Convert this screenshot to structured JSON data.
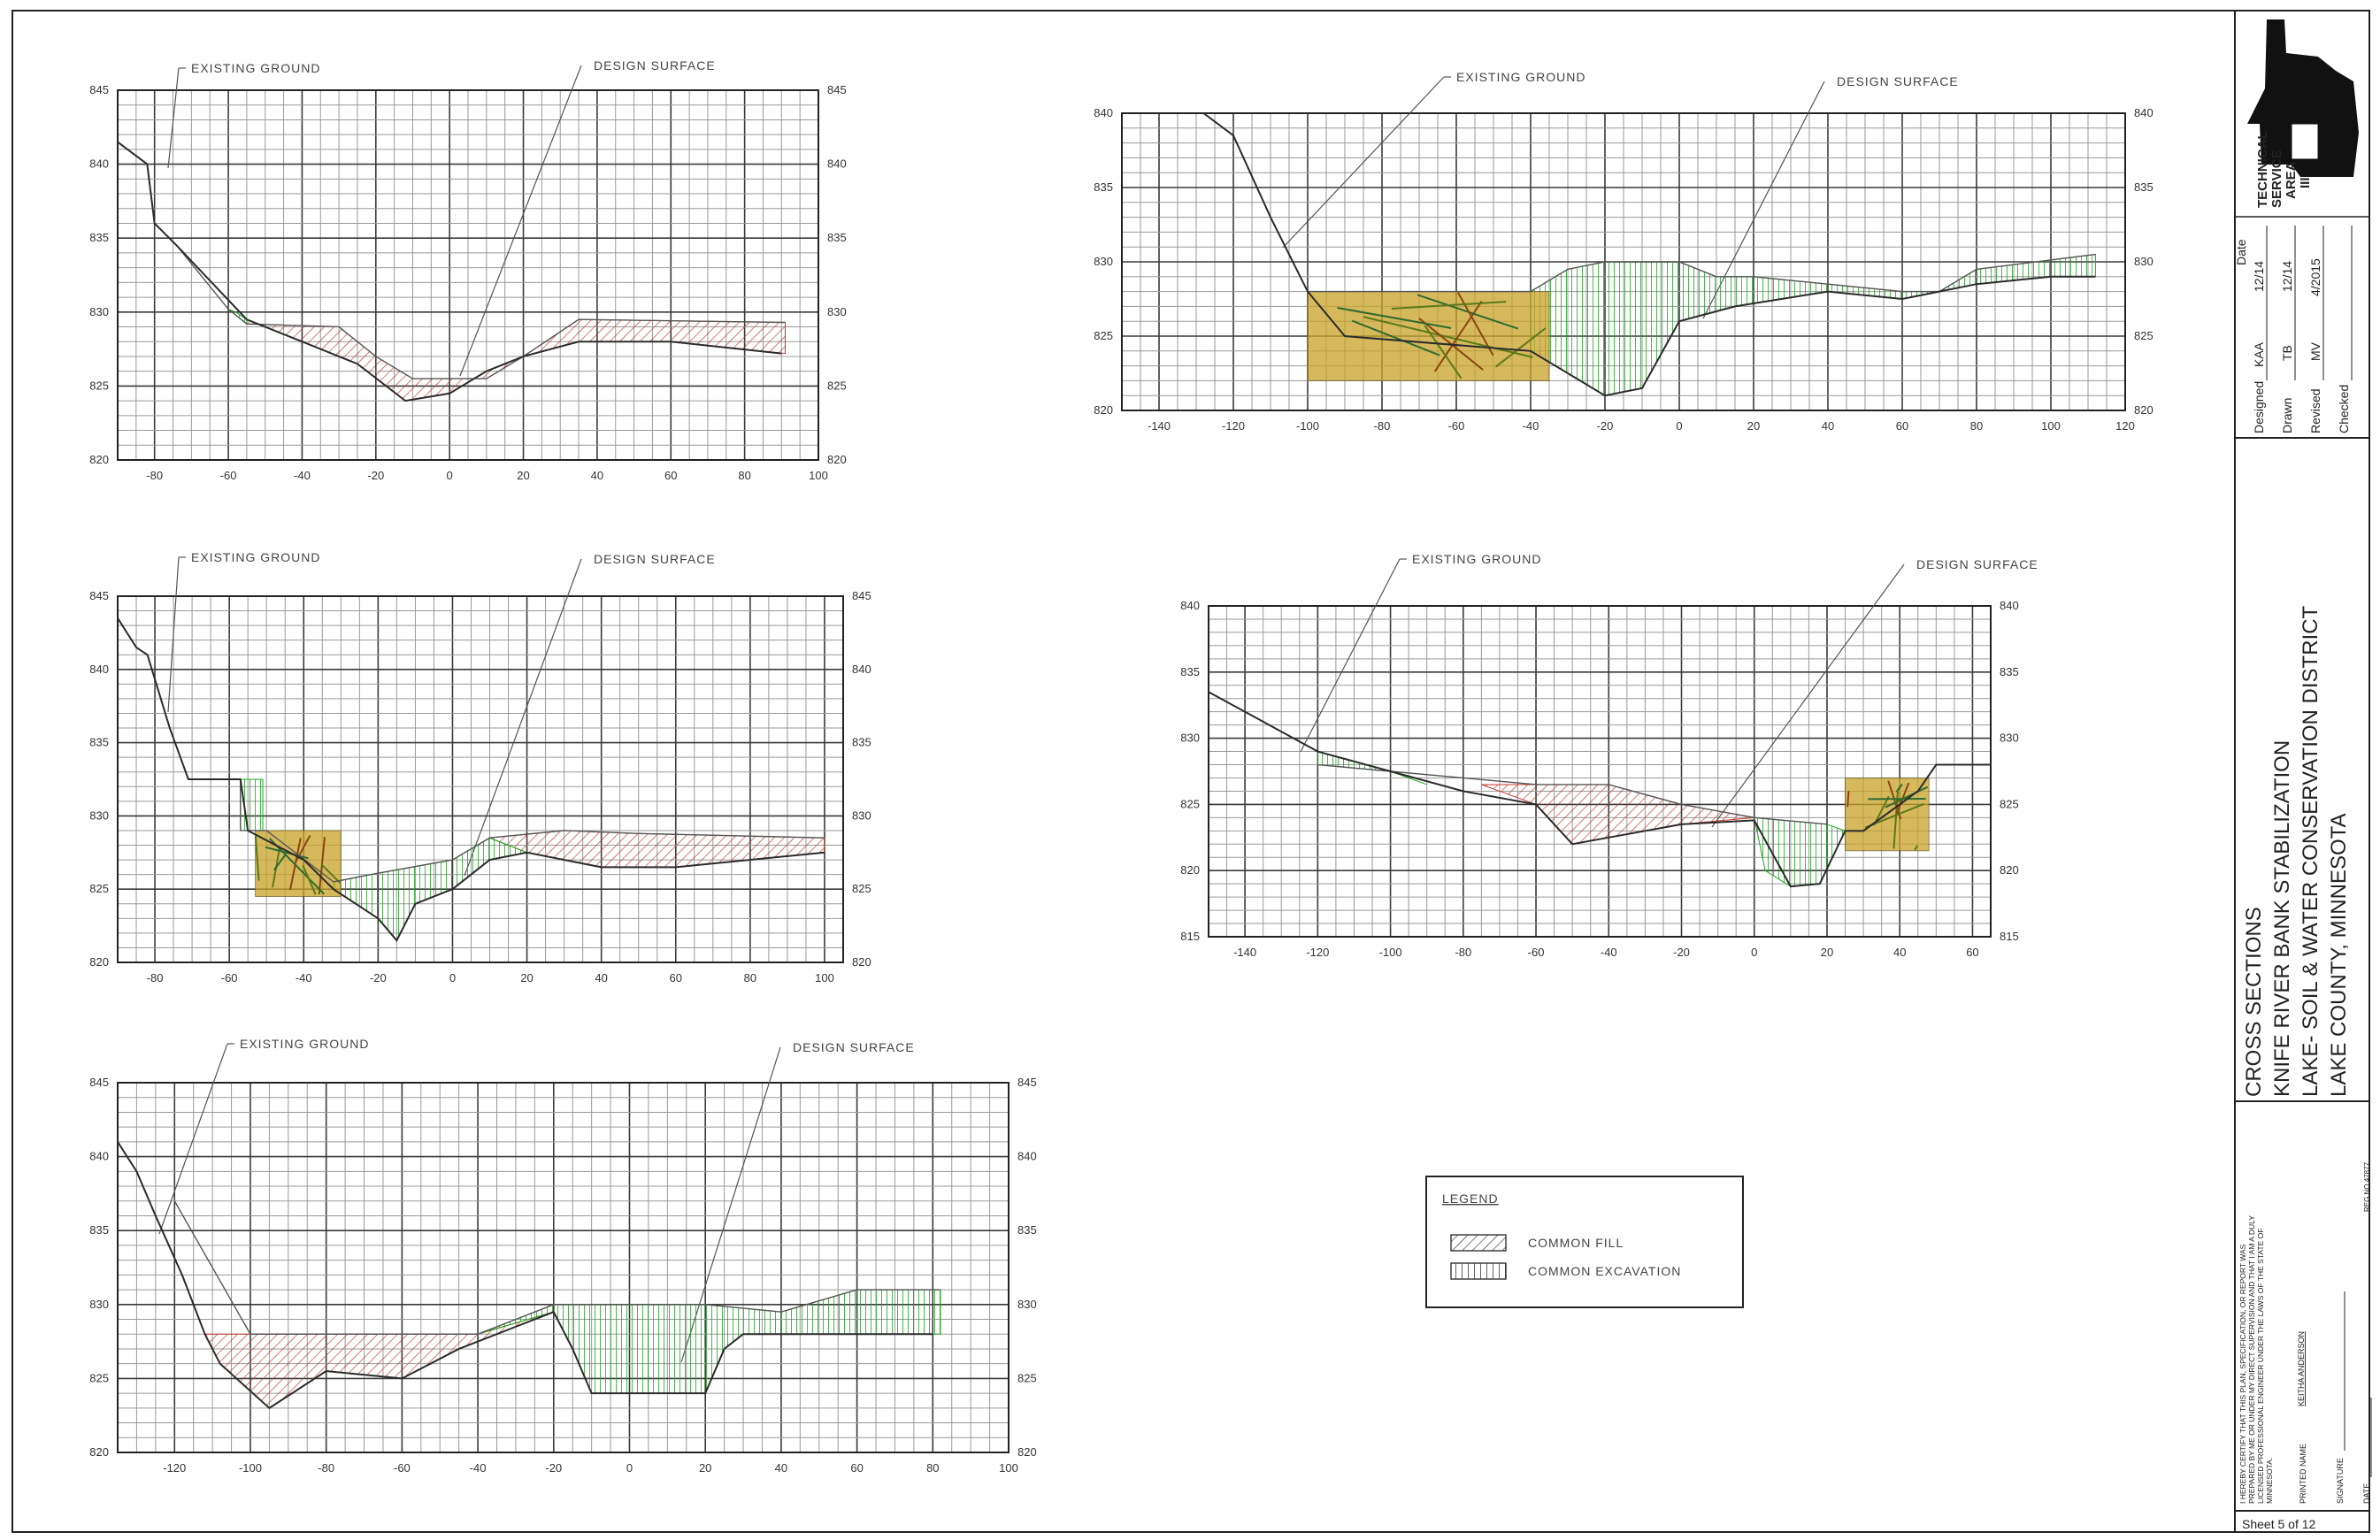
{
  "sections": [
    {
      "id": "s1",
      "xlabels": [
        "-80",
        "-60",
        "-40",
        "-20",
        "0",
        "20",
        "40",
        "60",
        "80",
        "100"
      ],
      "ylabels": [
        "845",
        "840",
        "835",
        "830",
        "825",
        "820"
      ],
      "note_existing": "EXISTING GROUND",
      "note_design": "DESIGN SURFACE"
    },
    {
      "id": "s2",
      "xlabels": [
        "-140",
        "-120",
        "-100",
        "-80",
        "-60",
        "-40",
        "-20",
        "0",
        "20",
        "40",
        "60",
        "80",
        "100",
        "120"
      ],
      "ylabels": [
        "840",
        "835",
        "830",
        "825",
        "820"
      ],
      "note_existing": "EXISTING GROUND",
      "note_design": "DESIGN SURFACE"
    },
    {
      "id": "s3",
      "xlabels": [
        "-80",
        "-60",
        "-40",
        "-20",
        "0",
        "20",
        "40",
        "60",
        "80",
        "100"
      ],
      "ylabels": [
        "845",
        "840",
        "835",
        "830",
        "825",
        "820"
      ],
      "note_existing": "EXISTING GROUND",
      "note_design": "DESIGN SURFACE"
    },
    {
      "id": "s4",
      "xlabels": [
        "-140",
        "-120",
        "-100",
        "-80",
        "-60",
        "-40",
        "-20",
        "0",
        "20",
        "40",
        "60"
      ],
      "ylabels": [
        "840",
        "835",
        "830",
        "825",
        "820",
        "815"
      ],
      "note_existing": "EXISTING GROUND",
      "note_design": "DESIGN SURFACE"
    },
    {
      "id": "s5",
      "xlabels": [
        "-120",
        "-100",
        "-80",
        "-60",
        "-40",
        "-20",
        "0",
        "20",
        "40",
        "60",
        "80",
        "100"
      ],
      "ylabels": [
        "845",
        "840",
        "835",
        "830",
        "825",
        "820"
      ],
      "note_existing": "EXISTING GROUND",
      "note_design": "DESIGN SURFACE"
    }
  ],
  "legend": {
    "title": "LEGEND",
    "fill_label": "COMMON FILL",
    "excavation_label": "COMMON EXCAVATION",
    "fill_color": "#c0392b",
    "excavation_color": "#1fa51f"
  },
  "title_block": {
    "agency_line1": "TECHNICAL",
    "agency_line2": "SERVICE",
    "agency_line3": "AREA",
    "agency_line4": "III",
    "date_header": "Date",
    "designed_label": "Designed",
    "designed_by": "KAA",
    "designed_date": "12/14",
    "drawn_label": "Drawn",
    "drawn_by": "TB",
    "drawn_date": "12/14",
    "revised_label": "Revised",
    "revised_by": "MV",
    "revised_date": "4/2015",
    "checked_label": "Checked",
    "title_line1": "CROSS SECTIONS",
    "title_line2": "KNIFE RIVER BANK STABILIZATION",
    "title_line3": "LAKE- SOIL & WATER CONSERVATION DISTRICT",
    "title_line4": "LAKE COUNTY, MINNESOTA",
    "cert_text_1": "I HEREBY CERTIFY THAT THIS PLAN, SPECIFICATION, OR REPORT WAS",
    "cert_text_2": "PREPARED BY ME OR UNDER MY DIRECT SUPERVISION AND THAT I AM A DULY",
    "cert_text_3": "LICENSED PROFESSIONAL ENGINEER UNDER THE LAWS OF THE STATE OF",
    "cert_text_4": "MINNESOTA.",
    "printed_name_label": "PRINTED NAME",
    "printed_name": "KEITHA ANDERSON",
    "signature_label": "SIGNATURE",
    "date_label": "DATE",
    "reg_no": "REG NO 47877",
    "sheet": "Sheet 5 of 12"
  }
}
